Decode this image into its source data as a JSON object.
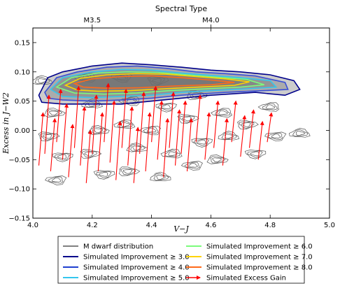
{
  "chart_data": {
    "type": "scatter",
    "title": "",
    "top_axis_label": "Spectral Type",
    "top_ticks": [
      {
        "x": 4.2,
        "label": "M3.5"
      },
      {
        "x": 4.6,
        "label": "M4.0"
      }
    ],
    "xlabel": "V−J",
    "ylabel": "Excess in J−W2",
    "xlim": [
      4.0,
      5.0
    ],
    "ylim": [
      -0.15,
      0.175
    ],
    "xticks": [
      "4.0",
      "4.2",
      "4.4",
      "4.6",
      "4.8",
      "5.0"
    ],
    "yticks": [
      "−0.15",
      "−0.10",
      "−0.05",
      "0.00",
      "0.05",
      "0.10",
      "0.15"
    ],
    "legend_position": "below",
    "legend": [
      {
        "label": "M dwarf distribution",
        "color": "#808080",
        "kind": "line"
      },
      {
        "label": "Simulated Improvement ≥ 3.0",
        "color": "#00008b",
        "kind": "line"
      },
      {
        "label": "Simulated Improvement ≥ 4.0",
        "color": "#1f3fd0",
        "kind": "line"
      },
      {
        "label": "Simulated Improvement ≥ 5.0",
        "color": "#34c6ee",
        "kind": "line"
      },
      {
        "label": "Simulated Improvement ≥ 6.0",
        "color": "#7cfc7c",
        "kind": "line"
      },
      {
        "label": "Simulated Improvement ≥ 7.0",
        "color": "#ffd400",
        "kind": "line"
      },
      {
        "label": "Simulated Improvement ≥ 8.0",
        "color": "#ff6a1a",
        "kind": "line"
      },
      {
        "label": "Simulated Excess Gain",
        "color": "#ff0000",
        "kind": "arrow"
      }
    ],
    "mdwarf_contours": [
      [
        4.03,
        0.085
      ],
      [
        4.07,
        0.03
      ],
      [
        4.05,
        -0.01
      ],
      [
        4.1,
        -0.045
      ],
      [
        4.08,
        -0.085
      ],
      [
        4.18,
        0.09
      ],
      [
        4.2,
        0.045
      ],
      [
        4.22,
        0.0
      ],
      [
        4.19,
        -0.04
      ],
      [
        4.24,
        -0.075
      ],
      [
        4.3,
        0.09
      ],
      [
        4.33,
        0.05
      ],
      [
        4.31,
        0.01
      ],
      [
        4.35,
        -0.03
      ],
      [
        4.32,
        -0.07
      ],
      [
        4.42,
        0.085
      ],
      [
        4.45,
        0.04
      ],
      [
        4.4,
        0.0
      ],
      [
        4.47,
        -0.04
      ],
      [
        4.43,
        -0.08
      ],
      [
        4.55,
        0.06
      ],
      [
        4.52,
        0.02
      ],
      [
        4.57,
        -0.02
      ],
      [
        4.54,
        -0.06
      ],
      [
        4.64,
        0.03
      ],
      [
        4.66,
        -0.01
      ],
      [
        4.62,
        -0.05
      ],
      [
        4.72,
        0.01
      ],
      [
        4.75,
        -0.04
      ],
      [
        4.82,
        -0.01
      ],
      [
        4.8,
        0.04
      ],
      [
        4.9,
        -0.005
      ]
    ],
    "improvement_regions": [
      {
        "level": 3.0,
        "points": [
          [
            4.02,
            0.06
          ],
          [
            4.05,
            0.09
          ],
          [
            4.1,
            0.1
          ],
          [
            4.2,
            0.11
          ],
          [
            4.3,
            0.115
          ],
          [
            4.4,
            0.112
          ],
          [
            4.5,
            0.108
          ],
          [
            4.6,
            0.103
          ],
          [
            4.7,
            0.1
          ],
          [
            4.8,
            0.095
          ],
          [
            4.88,
            0.085
          ],
          [
            4.9,
            0.07
          ],
          [
            4.85,
            0.06
          ],
          [
            4.75,
            0.065
          ],
          [
            4.6,
            0.06
          ],
          [
            4.5,
            0.055
          ],
          [
            4.4,
            0.05
          ],
          [
            4.3,
            0.045
          ],
          [
            4.2,
            0.045
          ],
          [
            4.1,
            0.045
          ],
          [
            4.03,
            0.048
          ]
        ]
      },
      {
        "level": 4.0,
        "points": [
          [
            4.04,
            0.065
          ],
          [
            4.08,
            0.09
          ],
          [
            4.15,
            0.1
          ],
          [
            4.25,
            0.108
          ],
          [
            4.35,
            0.11
          ],
          [
            4.45,
            0.106
          ],
          [
            4.55,
            0.1
          ],
          [
            4.65,
            0.097
          ],
          [
            4.75,
            0.093
          ],
          [
            4.85,
            0.082
          ],
          [
            4.86,
            0.07
          ],
          [
            4.78,
            0.068
          ],
          [
            4.65,
            0.065
          ],
          [
            4.5,
            0.06
          ],
          [
            4.4,
            0.055
          ],
          [
            4.3,
            0.052
          ],
          [
            4.2,
            0.05
          ],
          [
            4.1,
            0.052
          ],
          [
            4.05,
            0.055
          ]
        ]
      },
      {
        "level": 5.0,
        "points": [
          [
            4.06,
            0.07
          ],
          [
            4.1,
            0.09
          ],
          [
            4.2,
            0.1
          ],
          [
            4.3,
            0.104
          ],
          [
            4.4,
            0.103
          ],
          [
            4.5,
            0.098
          ],
          [
            4.6,
            0.094
          ],
          [
            4.7,
            0.09
          ],
          [
            4.8,
            0.085
          ],
          [
            4.82,
            0.074
          ],
          [
            4.72,
            0.071
          ],
          [
            4.6,
            0.068
          ],
          [
            4.5,
            0.065
          ],
          [
            4.4,
            0.06
          ],
          [
            4.3,
            0.058
          ],
          [
            4.2,
            0.056
          ],
          [
            4.1,
            0.058
          ]
        ]
      },
      {
        "level": 6.0,
        "points": [
          [
            4.08,
            0.074
          ],
          [
            4.13,
            0.09
          ],
          [
            4.22,
            0.098
          ],
          [
            4.32,
            0.1
          ],
          [
            4.42,
            0.099
          ],
          [
            4.52,
            0.095
          ],
          [
            4.62,
            0.091
          ],
          [
            4.72,
            0.087
          ],
          [
            4.78,
            0.078
          ],
          [
            4.7,
            0.074
          ],
          [
            4.58,
            0.071
          ],
          [
            4.46,
            0.068
          ],
          [
            4.35,
            0.064
          ],
          [
            4.24,
            0.062
          ],
          [
            4.14,
            0.064
          ]
        ]
      },
      {
        "level": 7.0,
        "points": [
          [
            4.11,
            0.077
          ],
          [
            4.16,
            0.089
          ],
          [
            4.25,
            0.095
          ],
          [
            4.35,
            0.097
          ],
          [
            4.45,
            0.096
          ],
          [
            4.55,
            0.092
          ],
          [
            4.65,
            0.088
          ],
          [
            4.73,
            0.083
          ],
          [
            4.68,
            0.077
          ],
          [
            4.56,
            0.074
          ],
          [
            4.44,
            0.071
          ],
          [
            4.33,
            0.068
          ],
          [
            4.22,
            0.067
          ],
          [
            4.15,
            0.069
          ]
        ]
      },
      {
        "level": 8.0,
        "points": [
          [
            4.14,
            0.08
          ],
          [
            4.2,
            0.088
          ],
          [
            4.3,
            0.092
          ],
          [
            4.4,
            0.093
          ],
          [
            4.5,
            0.09
          ],
          [
            4.6,
            0.086
          ],
          [
            4.68,
            0.082
          ],
          [
            4.6,
            0.078
          ],
          [
            4.48,
            0.076
          ],
          [
            4.36,
            0.073
          ],
          [
            4.25,
            0.072
          ],
          [
            4.17,
            0.074
          ]
        ]
      }
    ],
    "arrows": [
      {
        "x": 4.02,
        "y0": -0.06,
        "y1": 0.03
      },
      {
        "x": 4.04,
        "y0": -0.04,
        "y1": 0.06
      },
      {
        "x": 4.06,
        "y0": -0.07,
        "y1": 0.02
      },
      {
        "x": 4.08,
        "y0": -0.02,
        "y1": 0.07
      },
      {
        "x": 4.1,
        "y0": -0.05,
        "y1": 0.045
      },
      {
        "x": 4.12,
        "y0": -0.08,
        "y1": 0.01
      },
      {
        "x": 4.14,
        "y0": -0.03,
        "y1": 0.075
      },
      {
        "x": 4.16,
        "y0": -0.06,
        "y1": 0.04
      },
      {
        "x": 4.18,
        "y0": -0.09,
        "y1": 0.0
      },
      {
        "x": 4.2,
        "y0": -0.04,
        "y1": 0.06
      },
      {
        "x": 4.22,
        "y0": -0.07,
        "y1": 0.03
      },
      {
        "x": 4.24,
        "y0": -0.02,
        "y1": 0.08
      },
      {
        "x": 4.26,
        "y0": -0.055,
        "y1": 0.05
      },
      {
        "x": 4.28,
        "y0": -0.085,
        "y1": 0.015
      },
      {
        "x": 4.3,
        "y0": -0.03,
        "y1": 0.07
      },
      {
        "x": 4.32,
        "y0": -0.06,
        "y1": 0.04
      },
      {
        "x": 4.34,
        "y0": -0.09,
        "y1": 0.005
      },
      {
        "x": 4.36,
        "y0": -0.04,
        "y1": 0.065
      },
      {
        "x": 4.38,
        "y0": -0.07,
        "y1": 0.03
      },
      {
        "x": 4.4,
        "y0": -0.02,
        "y1": 0.075
      },
      {
        "x": 4.42,
        "y0": -0.05,
        "y1": 0.05
      },
      {
        "x": 4.44,
        "y0": -0.08,
        "y1": 0.02
      },
      {
        "x": 4.46,
        "y0": -0.03,
        "y1": 0.065
      },
      {
        "x": 4.48,
        "y0": -0.06,
        "y1": 0.035
      },
      {
        "x": 4.5,
        "y0": -0.04,
        "y1": 0.05
      },
      {
        "x": 4.52,
        "y0": -0.07,
        "y1": 0.02
      },
      {
        "x": 4.55,
        "y0": -0.02,
        "y1": 0.06
      },
      {
        "x": 4.58,
        "y0": -0.05,
        "y1": 0.03
      },
      {
        "x": 4.61,
        "y0": -0.03,
        "y1": 0.05
      },
      {
        "x": 4.64,
        "y0": -0.06,
        "y1": 0.02
      },
      {
        "x": 4.67,
        "y0": -0.02,
        "y1": 0.05
      },
      {
        "x": 4.7,
        "y0": -0.045,
        "y1": 0.025
      },
      {
        "x": 4.73,
        "y0": -0.03,
        "y1": 0.035
      },
      {
        "x": 4.76,
        "y0": -0.05,
        "y1": 0.015
      },
      {
        "x": 4.79,
        "y0": -0.02,
        "y1": 0.03
      }
    ]
  }
}
